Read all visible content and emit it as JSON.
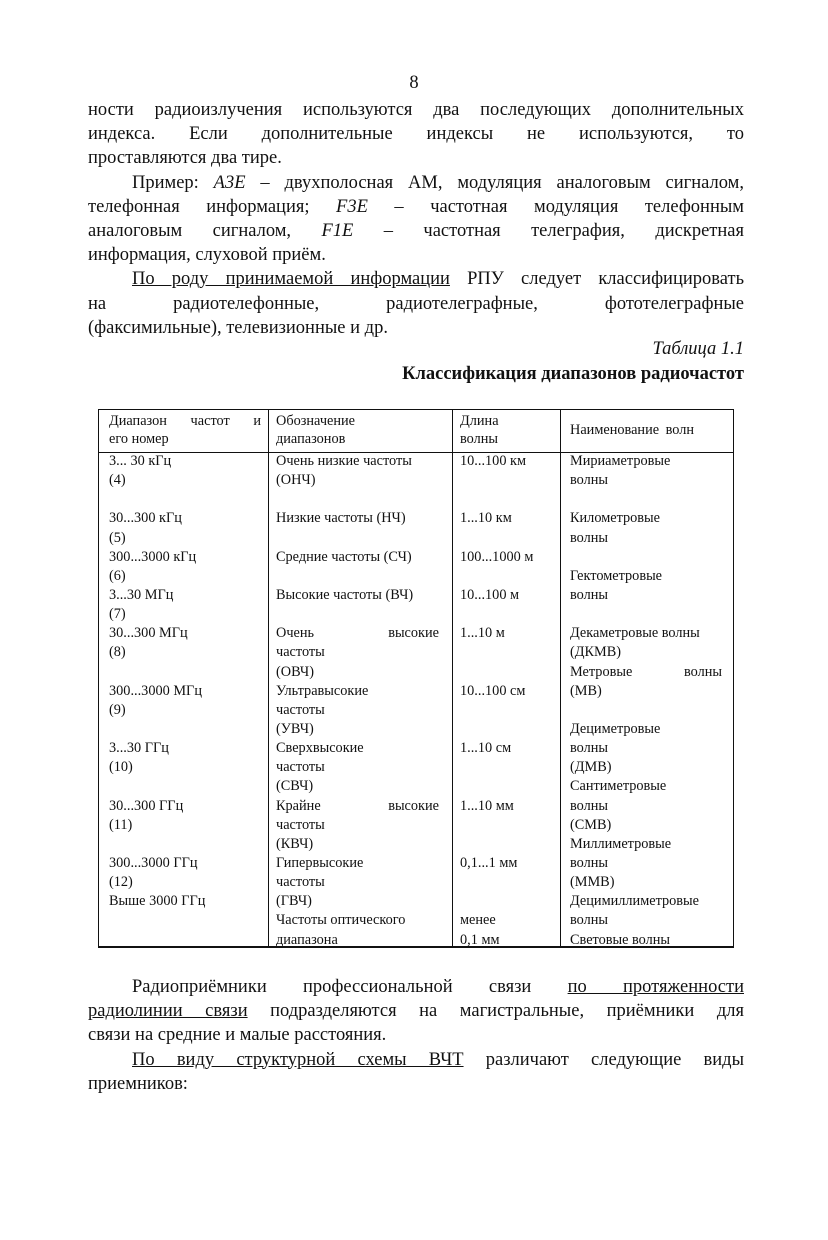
{
  "page_number": "8",
  "top_paragraphs": [
    {
      "lines": [
        {
          "justify": true,
          "segs": [
            {
              "t": "ности радиоизлучения используются два последующих дополнительных"
            }
          ]
        },
        {
          "justify": true,
          "segs": [
            {
              "t": "индекса. Если дополнительные индексы не используются, то"
            }
          ]
        },
        {
          "justify": false,
          "segs": [
            {
              "t": "проставляются два тире."
            }
          ]
        }
      ]
    },
    {
      "lines": [
        {
          "justify": true,
          "indent": true,
          "segs": [
            {
              "t": "Пример: "
            },
            {
              "t": "A3E",
              "style": "i"
            },
            {
              "t": " – двухполосная АМ, модуляция аналоговым сигналом,"
            }
          ]
        },
        {
          "justify": true,
          "segs": [
            {
              "t": "телефонная информация; "
            },
            {
              "t": "F3E",
              "style": "i"
            },
            {
              "t": " – частотная модуляция телефонным"
            }
          ]
        },
        {
          "justify": true,
          "segs": [
            {
              "t": "аналоговым сигналом, "
            },
            {
              "t": "F1E",
              "style": "i"
            },
            {
              "t": " – частотная телеграфия, дискретная"
            }
          ]
        },
        {
          "justify": false,
          "segs": [
            {
              "t": "информация, слуховой приём."
            }
          ]
        }
      ]
    },
    {
      "lines": [
        {
          "justify": true,
          "indent": true,
          "segs": [
            {
              "t": "По роду принимаемой информации",
              "style": "u"
            },
            {
              "t": " РПУ следует классифицировать"
            }
          ]
        },
        {
          "justify": true,
          "segs": [
            {
              "t": "на радиотелефонные, радиотелеграфные, фототелеграфные"
            }
          ]
        },
        {
          "justify": false,
          "segs": [
            {
              "t": "(факсимильные), телевизионные и др."
            }
          ]
        }
      ]
    }
  ],
  "table": {
    "number_label": "Таблица 1.1",
    "title": "Классификация диапазонов радиочастот",
    "headers": [
      [
        "Диапазон частот и",
        "его номер"
      ],
      [
        "Обозначение",
        "диапазонов"
      ],
      [
        "Длина",
        "волны"
      ],
      [
        "Наименование волн"
      ]
    ],
    "columns": [
      [
        "3... 30 кГц",
        "(4)",
        "",
        "30...300 кГц",
        "(5)",
        "300...3000 кГц",
        "(6)",
        "3...30 МГц",
        "(7)",
        "30...300 МГц",
        "(8)",
        "",
        "300...3000 МГц",
        "(9)",
        "",
        "3...30 ГГц",
        "(10)",
        "",
        "30...300 ГГц",
        "(11)",
        "",
        "300...3000 ГГц",
        "(12)",
        "Выше 3000 ГГц",
        "",
        ""
      ],
      [
        "Очень низкие частоты",
        "(ОНЧ)",
        "",
        "Низкие частоты (НЧ)",
        "",
        "Средние частоты (СЧ)",
        "",
        "Высокие частоты (ВЧ)",
        "",
        "Очень высокие",
        "частоты",
        "(ОВЧ)",
        "Ультравысокие",
        "частоты",
        "(УВЧ)",
        "Сверхвысокие",
        "частоты",
        "(СВЧ)",
        "Крайне высокие",
        "частоты",
        "(КВЧ)",
        "Гипервысокие",
        "частоты",
        "(ГВЧ)",
        "Частоты оптического",
        "диапазона"
      ],
      [
        "10...100 км",
        "",
        "",
        "1...10 км",
        "",
        "100...1000 м",
        "",
        "10...100 м",
        "",
        "1...10 м",
        "",
        "",
        "10...100 см",
        "",
        "",
        "1...10 см",
        "",
        "",
        "1...10 мм",
        "",
        "",
        "0,1...1 мм",
        "",
        "",
        "менее",
        "0,1 мм"
      ],
      [
        "Мириаметровые",
        "волны",
        "",
        "Километровые",
        "волны",
        "",
        "Гектометровые",
        "волны",
        "",
        "Декаметровые волны",
        "(ДКМВ)",
        "Метровые волны",
        "(МВ)",
        "",
        "Дециметровые",
        "волны",
        "(ДМВ)",
        "Сантиметровые",
        "волны",
        "(СМВ)",
        "Миллиметровые",
        "волны",
        "(ММВ)",
        "Децимиллиметровые",
        "волны",
        "Световые волны"
      ]
    ]
  },
  "bottom_paragraphs": [
    {
      "lines": [
        {
          "justify": true,
          "indent": true,
          "segs": [
            {
              "t": "Радиоприёмники профессиональной связи "
            },
            {
              "t": "по протяженности",
              "style": "u"
            }
          ]
        },
        {
          "justify": true,
          "segs": [
            {
              "t": "радиолинии связи",
              "style": "u"
            },
            {
              "t": " подразделяются на магистральные, приёмники для"
            }
          ]
        },
        {
          "justify": false,
          "segs": [
            {
              "t": "связи на средние и малые расстояния."
            }
          ]
        }
      ]
    },
    {
      "lines": [
        {
          "justify": true,
          "indent": true,
          "segs": [
            {
              "t": "По виду структурной схемы ВЧТ",
              "style": "u"
            },
            {
              "t": " различают следующие виды"
            }
          ]
        },
        {
          "justify": false,
          "segs": [
            {
              "t": "приемников:"
            }
          ]
        }
      ]
    }
  ]
}
